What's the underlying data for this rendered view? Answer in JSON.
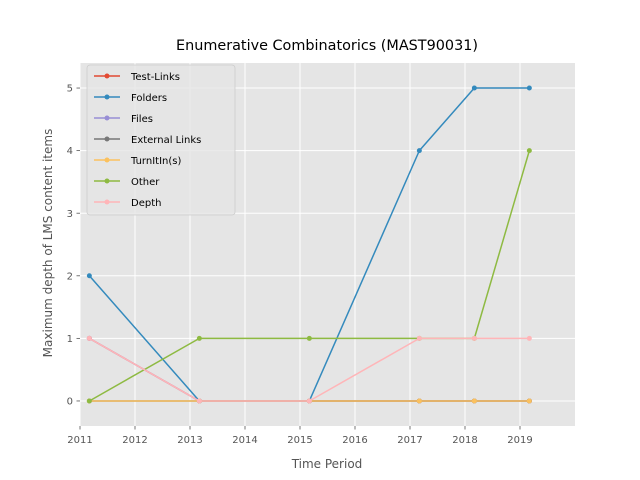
{
  "chart_data": {
    "type": "line",
    "title": "Enumerative Combinatorics (MAST90031)",
    "xlabel": "Time Period",
    "ylabel": "Maximum depth of LMS content items",
    "xlim": [
      2011,
      2020
    ],
    "ylim": [
      -0.4,
      5.4
    ],
    "x_ticks": [
      2011,
      2012,
      2013,
      2014,
      2015,
      2016,
      2017,
      2018,
      2019
    ],
    "y_ticks": [
      0,
      1,
      2,
      3,
      4,
      5
    ],
    "grid": true,
    "legend_position": "top-left",
    "series": [
      {
        "name": "Test-Links",
        "color": "#E24A33",
        "x": [
          2011.17,
          2013.17,
          2015.17,
          2017.17,
          2018.17,
          2019.17
        ],
        "y": [
          1,
          0,
          0,
          0,
          0,
          0
        ]
      },
      {
        "name": "Folders",
        "color": "#348ABD",
        "x": [
          2011.17,
          2013.17,
          2015.17,
          2017.17,
          2018.17,
          2019.17
        ],
        "y": [
          2,
          0,
          0,
          4,
          5,
          5
        ]
      },
      {
        "name": "Files",
        "color": "#988ED5",
        "x": [
          2011.17,
          2013.17,
          2015.17,
          2017.17,
          2018.17,
          2019.17
        ],
        "y": [
          1,
          0,
          0,
          0,
          0,
          0
        ]
      },
      {
        "name": "External Links",
        "color": "#777777",
        "x": [
          2011.17,
          2013.17,
          2015.17,
          2017.17,
          2018.17,
          2019.17
        ],
        "y": [
          0,
          0,
          0,
          0,
          0,
          0
        ]
      },
      {
        "name": "TurnItIn(s)",
        "color": "#FBC15E",
        "x": [
          2011.17,
          2013.17,
          2015.17,
          2017.17,
          2018.17,
          2019.17
        ],
        "y": [
          0,
          0,
          0,
          0,
          0,
          0
        ]
      },
      {
        "name": "Other",
        "color": "#8EBA42",
        "x": [
          2011.17,
          2013.17,
          2015.17,
          2017.17,
          2018.17,
          2019.17
        ],
        "y": [
          0,
          1,
          1,
          1,
          1,
          4
        ]
      },
      {
        "name": "Depth",
        "color": "#FFB5B8",
        "x": [
          2011.17,
          2013.17,
          2015.17,
          2017.17,
          2018.17,
          2019.17
        ],
        "y": [
          1,
          0,
          0,
          1,
          1,
          1
        ]
      }
    ]
  }
}
